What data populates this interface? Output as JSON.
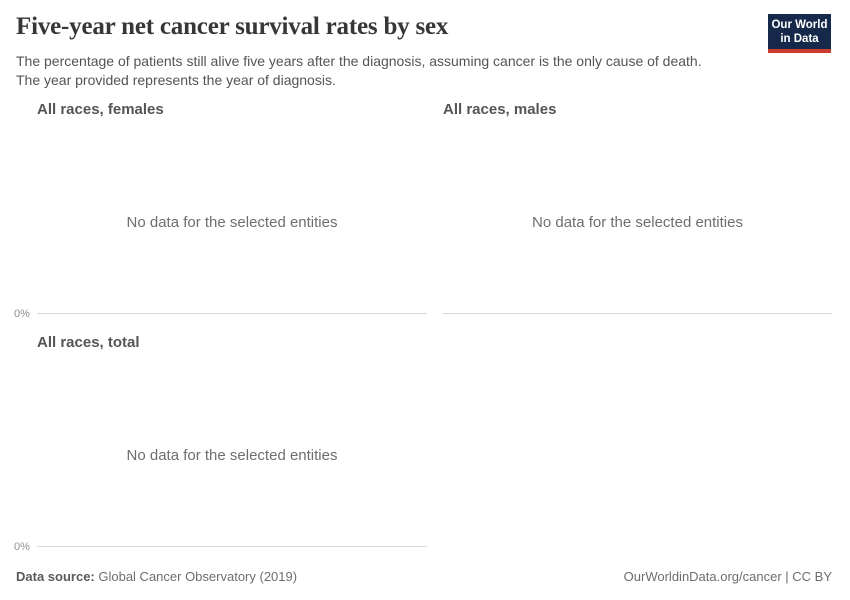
{
  "header": {
    "title": "Five-year net cancer survival rates by sex",
    "subtitle_line1": "The percentage of patients still alive five years after the diagnosis, assuming cancer is the only cause of death.",
    "subtitle_line2": "The year provided represents the year of diagnosis.",
    "logo_line1": "Our World",
    "logo_line2": "in Data"
  },
  "facets": [
    {
      "title": "All races, females",
      "no_data_message": "No data for the selected entities",
      "axis_tick": "0%"
    },
    {
      "title": "All races, males",
      "no_data_message": "No data for the selected entities",
      "axis_tick": ""
    },
    {
      "title": "All races, total",
      "no_data_message": "No data for the selected entities",
      "axis_tick": "0%"
    }
  ],
  "footer": {
    "source_label": "Data source:",
    "source_value": " Global Cancer Observatory (2019)",
    "link_text": "OurWorldinData.org/cancer | CC BY"
  },
  "colors": {
    "title_text": "#383636",
    "subtitle_text": "#545454",
    "facet_title_text": "#555555",
    "no_data_text": "#6e6e6e",
    "axis_tick_text": "#8f8f8f",
    "axis_line": "#d9d9d9",
    "footer_text": "#6e6e6e",
    "logo_background": "#16294a",
    "logo_accent_red": "#cd3c30",
    "page_background": "#ffffff"
  },
  "chart_data": [
    {
      "type": "line",
      "title": "All races, females",
      "x": [],
      "series": [],
      "y_ticks": [
        "0%"
      ],
      "ylim_bottom_label": "0%",
      "grid": false,
      "annotation": "No data for the selected entities"
    },
    {
      "type": "line",
      "title": "All races, males",
      "x": [],
      "series": [],
      "y_ticks": [],
      "grid": false,
      "annotation": "No data for the selected entities"
    },
    {
      "type": "line",
      "title": "All races, total",
      "x": [],
      "series": [],
      "y_ticks": [
        "0%"
      ],
      "ylim_bottom_label": "0%",
      "grid": false,
      "annotation": "No data for the selected entities"
    }
  ]
}
